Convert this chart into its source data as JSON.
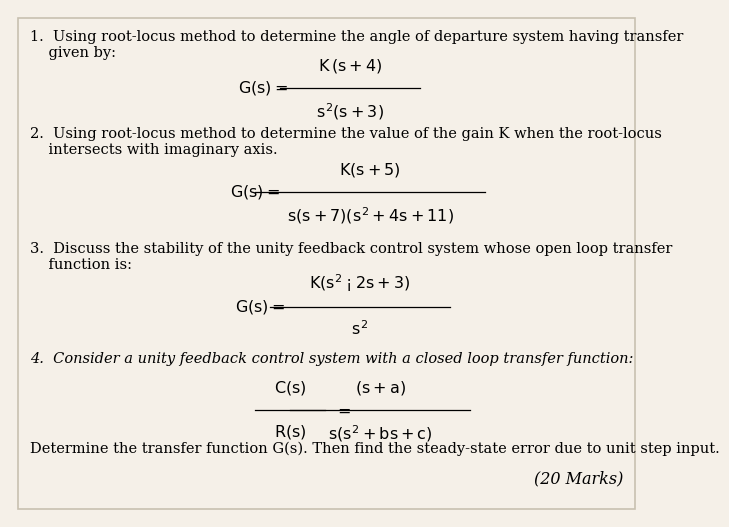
{
  "background_color": "#f5f0e8",
  "border_color": "#c8c0b0",
  "text_color": "#000000",
  "font_size_body": 10.5,
  "font_size_math": 11.5,
  "q1_text1": "1.  Using root-locus method to determine the angle of departure system having transfer",
  "q1_text2": "    given by:",
  "q1_num": "$K\\,(s+4)$",
  "q1_den": "$s^2(s+3)$",
  "q2_text1": "2.  Using root-locus method to determine the value of the gain K when the root-locus",
  "q2_text2": "    intersects with imaginary axis.",
  "q2_num": "$K(s+5)$",
  "q2_den": "$s(s+7)(s^2+4s+11)$",
  "q3_text1": "3.  Discuss the stability of the unity feedback control system whose open loop transfer",
  "q3_text2": "    function is:",
  "q3_num": "$K(s^2-2s+3)$",
  "q3_den": "$s^2$",
  "q4_text1": "4.  Consider a unity feedback control system with a closed loop transfer function:",
  "q4_num": "$(s+a)$",
  "q4_den": "$s(s^2+bs+c)$",
  "footer1": "Determine the transfer function G(s). Then find the steady-state error due to unit step input.",
  "footer2": "(20 Marks)"
}
